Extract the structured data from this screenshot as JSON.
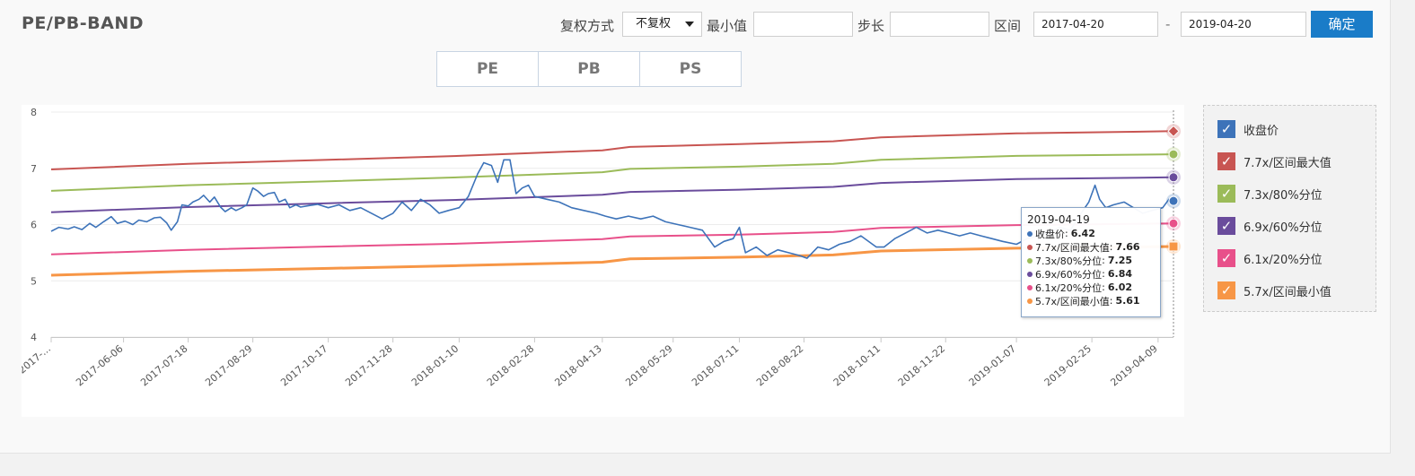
{
  "header": {
    "title": "PE/PB-BAND",
    "adjust_label": "复权方式",
    "adjust_value": "不复权",
    "min_label": "最小值",
    "min_value": "",
    "step_label": "步长",
    "step_value": "",
    "range_label": "区间",
    "start_date": "2017-04-20",
    "dash": "-",
    "end_date": "2019-04-20",
    "confirm_label": "确定"
  },
  "tabs": [
    {
      "label": "PE",
      "active": true
    },
    {
      "label": "PB",
      "active": false
    },
    {
      "label": "PS",
      "active": false
    }
  ],
  "legend": [
    {
      "label": "收盘价",
      "color": "#3d73b9",
      "checked": true
    },
    {
      "label": "7.7x/区间最大值",
      "color": "#c85552",
      "checked": true
    },
    {
      "label": "7.3x/80%分位",
      "color": "#9bbb59",
      "checked": true
    },
    {
      "label": "6.9x/60%分位",
      "color": "#6a4c9c",
      "checked": true
    },
    {
      "label": "6.1x/20%分位",
      "color": "#e8508a",
      "checked": true
    },
    {
      "label": "5.7x/区间最小值",
      "color": "#f79646",
      "checked": true
    }
  ],
  "tooltip": {
    "date": "2019-04-19",
    "rows": [
      {
        "label": "收盘价",
        "value": "6.42",
        "color": "#3d73b9"
      },
      {
        "label": "7.7x/区间最大值",
        "value": "7.66",
        "color": "#c85552"
      },
      {
        "label": "7.3x/80%分位",
        "value": "7.25",
        "color": "#9bbb59"
      },
      {
        "label": "6.9x/60%分位",
        "value": "6.84",
        "color": "#6a4c9c"
      },
      {
        "label": "6.1x/20%分位",
        "value": "6.02",
        "color": "#e8508a"
      },
      {
        "label": "5.7x/区间最小值",
        "value": "5.61",
        "color": "#f79646"
      }
    ]
  },
  "chart_data": {
    "type": "line",
    "ylim": [
      4,
      8
    ],
    "yticks": [
      "4",
      "5",
      "6",
      "7",
      "8"
    ],
    "xlim": [
      "2017-04-20",
      "2019-04-19"
    ],
    "xtick_labels": [
      {
        "date": "2017-04-20",
        "label": "2017-..."
      },
      {
        "date": "2017-06-06",
        "label": "2017-06-06"
      },
      {
        "date": "2017-07-18",
        "label": "2017-07-18"
      },
      {
        "date": "2017-08-29",
        "label": "2017-08-29"
      },
      {
        "date": "2017-10-17",
        "label": "2017-10-17"
      },
      {
        "date": "2017-11-28",
        "label": "2017-11-28"
      },
      {
        "date": "2018-01-10",
        "label": "2018-01-10"
      },
      {
        "date": "2018-02-28",
        "label": "2018-02-28"
      },
      {
        "date": "2018-04-13",
        "label": "2018-04-13"
      },
      {
        "date": "2018-05-29",
        "label": "2018-05-29"
      },
      {
        "date": "2018-07-11",
        "label": "2018-07-11"
      },
      {
        "date": "2018-08-22",
        "label": "2018-08-22"
      },
      {
        "date": "2018-10-11",
        "label": "2018-10-11"
      },
      {
        "date": "2018-11-22",
        "label": "2018-11-22"
      },
      {
        "date": "2019-01-07",
        "label": "2019-01-07"
      },
      {
        "date": "2019-02-25",
        "label": "2019-02-25"
      },
      {
        "date": "2019-04-09",
        "label": "2019-04-09"
      }
    ],
    "legend_position": "right",
    "grid": true,
    "series": [
      {
        "name": "收盘价",
        "color": "#3d73b9",
        "width": 1.6,
        "points": [
          [
            "2017-04-20",
            5.88
          ],
          [
            "2017-04-25",
            5.95
          ],
          [
            "2017-05-01",
            5.92
          ],
          [
            "2017-05-05",
            5.96
          ],
          [
            "2017-05-10",
            5.91
          ],
          [
            "2017-05-15",
            6.02
          ],
          [
            "2017-05-19",
            5.95
          ],
          [
            "2017-05-24",
            6.05
          ],
          [
            "2017-05-29",
            6.14
          ],
          [
            "2017-06-02",
            6.02
          ],
          [
            "2017-06-07",
            6.06
          ],
          [
            "2017-06-12",
            6.0
          ],
          [
            "2017-06-16",
            6.08
          ],
          [
            "2017-06-21",
            6.05
          ],
          [
            "2017-06-26",
            6.12
          ],
          [
            "2017-06-30",
            6.13
          ],
          [
            "2017-07-04",
            6.03
          ],
          [
            "2017-07-07",
            5.9
          ],
          [
            "2017-07-11",
            6.05
          ],
          [
            "2017-07-14",
            6.35
          ],
          [
            "2017-07-18",
            6.33
          ],
          [
            "2017-07-21",
            6.4
          ],
          [
            "2017-07-25",
            6.45
          ],
          [
            "2017-07-28",
            6.52
          ],
          [
            "2017-08-01",
            6.4
          ],
          [
            "2017-08-04",
            6.49
          ],
          [
            "2017-08-08",
            6.31
          ],
          [
            "2017-08-11",
            6.23
          ],
          [
            "2017-08-15",
            6.3
          ],
          [
            "2017-08-18",
            6.25
          ],
          [
            "2017-08-22",
            6.3
          ],
          [
            "2017-08-25",
            6.35
          ],
          [
            "2017-08-29",
            6.65
          ],
          [
            "2017-09-01",
            6.6
          ],
          [
            "2017-09-05",
            6.5
          ],
          [
            "2017-09-08",
            6.55
          ],
          [
            "2017-09-12",
            6.57
          ],
          [
            "2017-09-15",
            6.4
          ],
          [
            "2017-09-19",
            6.45
          ],
          [
            "2017-09-22",
            6.3
          ],
          [
            "2017-09-26",
            6.35
          ],
          [
            "2017-09-29",
            6.31
          ],
          [
            "2017-10-05",
            6.34
          ],
          [
            "2017-10-10",
            6.36
          ],
          [
            "2017-10-17",
            6.3
          ],
          [
            "2017-10-24",
            6.35
          ],
          [
            "2017-10-31",
            6.25
          ],
          [
            "2017-11-07",
            6.3
          ],
          [
            "2017-11-14",
            6.2
          ],
          [
            "2017-11-21",
            6.1
          ],
          [
            "2017-11-28",
            6.2
          ],
          [
            "2017-12-04",
            6.4
          ],
          [
            "2017-12-10",
            6.25
          ],
          [
            "2017-12-16",
            6.45
          ],
          [
            "2017-12-22",
            6.35
          ],
          [
            "2017-12-28",
            6.2
          ],
          [
            "2018-01-03",
            6.25
          ],
          [
            "2018-01-10",
            6.3
          ],
          [
            "2018-01-16",
            6.5
          ],
          [
            "2018-01-22",
            6.9
          ],
          [
            "2018-01-26",
            7.1
          ],
          [
            "2018-01-31",
            7.05
          ],
          [
            "2018-02-04",
            6.75
          ],
          [
            "2018-02-08",
            7.15
          ],
          [
            "2018-02-12",
            7.15
          ],
          [
            "2018-02-16",
            6.55
          ],
          [
            "2018-02-20",
            6.65
          ],
          [
            "2018-02-24",
            6.7
          ],
          [
            "2018-02-28",
            6.5
          ],
          [
            "2018-03-08",
            6.45
          ],
          [
            "2018-03-16",
            6.4
          ],
          [
            "2018-03-24",
            6.3
          ],
          [
            "2018-04-01",
            6.25
          ],
          [
            "2018-04-09",
            6.2
          ],
          [
            "2018-04-15",
            6.15
          ],
          [
            "2018-04-22",
            6.1
          ],
          [
            "2018-04-30",
            6.15
          ],
          [
            "2018-05-08",
            6.1
          ],
          [
            "2018-05-16",
            6.15
          ],
          [
            "2018-05-24",
            6.05
          ],
          [
            "2018-06-01",
            6.0
          ],
          [
            "2018-06-09",
            5.95
          ],
          [
            "2018-06-17",
            5.9
          ],
          [
            "2018-06-25",
            5.6
          ],
          [
            "2018-07-01",
            5.7
          ],
          [
            "2018-07-07",
            5.75
          ],
          [
            "2018-07-11",
            5.95
          ],
          [
            "2018-07-15",
            5.5
          ],
          [
            "2018-07-22",
            5.6
          ],
          [
            "2018-07-29",
            5.45
          ],
          [
            "2018-08-05",
            5.55
          ],
          [
            "2018-08-12",
            5.5
          ],
          [
            "2018-08-19",
            5.45
          ],
          [
            "2018-08-24",
            5.4
          ],
          [
            "2018-08-31",
            5.6
          ],
          [
            "2018-09-07",
            5.55
          ],
          [
            "2018-09-14",
            5.65
          ],
          [
            "2018-09-21",
            5.7
          ],
          [
            "2018-09-28",
            5.8
          ],
          [
            "2018-10-08",
            5.6
          ],
          [
            "2018-10-13",
            5.6
          ],
          [
            "2018-10-20",
            5.75
          ],
          [
            "2018-10-27",
            5.85
          ],
          [
            "2018-11-03",
            5.95
          ],
          [
            "2018-11-10",
            5.85
          ],
          [
            "2018-11-17",
            5.9
          ],
          [
            "2018-11-24",
            5.85
          ],
          [
            "2018-12-01",
            5.8
          ],
          [
            "2018-12-08",
            5.85
          ],
          [
            "2018-12-15",
            5.8
          ],
          [
            "2018-12-22",
            5.75
          ],
          [
            "2018-12-29",
            5.7
          ],
          [
            "2019-01-07",
            5.65
          ],
          [
            "2019-01-14",
            5.75
          ],
          [
            "2019-01-21",
            5.8
          ],
          [
            "2019-01-28",
            5.85
          ],
          [
            "2019-02-04",
            5.95
          ],
          [
            "2019-02-11",
            5.9
          ],
          [
            "2019-02-18",
            6.2
          ],
          [
            "2019-02-23",
            6.4
          ],
          [
            "2019-02-27",
            6.7
          ],
          [
            "2019-03-02",
            6.45
          ],
          [
            "2019-03-06",
            6.3
          ],
          [
            "2019-03-11",
            6.35
          ],
          [
            "2019-03-18",
            6.4
          ],
          [
            "2019-03-24",
            6.3
          ],
          [
            "2019-03-30",
            6.2
          ],
          [
            "2019-04-05",
            6.25
          ],
          [
            "2019-04-12",
            6.3
          ],
          [
            "2019-04-16",
            6.45
          ],
          [
            "2019-04-19",
            6.42
          ]
        ]
      },
      {
        "name": "7.7x/区间最大值",
        "color": "#c85552",
        "width": 2,
        "points": [
          [
            "2017-04-20",
            6.98
          ],
          [
            "2017-07-18",
            7.08
          ],
          [
            "2017-10-17",
            7.15
          ],
          [
            "2018-01-10",
            7.22
          ],
          [
            "2018-04-13",
            7.32
          ],
          [
            "2018-05-01",
            7.38
          ],
          [
            "2018-07-11",
            7.43
          ],
          [
            "2018-09-10",
            7.48
          ],
          [
            "2018-10-11",
            7.55
          ],
          [
            "2019-01-07",
            7.62
          ],
          [
            "2019-04-19",
            7.66
          ]
        ]
      },
      {
        "name": "7.3x/80%分位",
        "color": "#9bbb59",
        "width": 2,
        "points": [
          [
            "2017-04-20",
            6.6
          ],
          [
            "2017-07-18",
            6.7
          ],
          [
            "2017-10-17",
            6.77
          ],
          [
            "2018-01-10",
            6.84
          ],
          [
            "2018-04-13",
            6.93
          ],
          [
            "2018-05-01",
            6.99
          ],
          [
            "2018-07-11",
            7.03
          ],
          [
            "2018-09-10",
            7.08
          ],
          [
            "2018-10-11",
            7.15
          ],
          [
            "2019-01-07",
            7.22
          ],
          [
            "2019-04-19",
            7.25
          ]
        ]
      },
      {
        "name": "6.9x/60%分位",
        "color": "#6a4c9c",
        "width": 2,
        "points": [
          [
            "2017-04-20",
            6.22
          ],
          [
            "2017-07-18",
            6.31
          ],
          [
            "2017-10-17",
            6.38
          ],
          [
            "2018-01-10",
            6.44
          ],
          [
            "2018-04-13",
            6.53
          ],
          [
            "2018-05-01",
            6.58
          ],
          [
            "2018-07-11",
            6.62
          ],
          [
            "2018-09-10",
            6.67
          ],
          [
            "2018-10-11",
            6.74
          ],
          [
            "2019-01-07",
            6.81
          ],
          [
            "2019-04-19",
            6.84
          ]
        ]
      },
      {
        "name": "6.1x/20%分位",
        "color": "#e8508a",
        "width": 2,
        "points": [
          [
            "2017-04-20",
            5.47
          ],
          [
            "2017-07-18",
            5.55
          ],
          [
            "2017-10-17",
            5.61
          ],
          [
            "2018-01-10",
            5.66
          ],
          [
            "2018-04-13",
            5.74
          ],
          [
            "2018-05-01",
            5.79
          ],
          [
            "2018-07-11",
            5.82
          ],
          [
            "2018-09-10",
            5.87
          ],
          [
            "2018-10-11",
            5.94
          ],
          [
            "2019-01-07",
            5.99
          ],
          [
            "2019-04-19",
            6.02
          ]
        ]
      },
      {
        "name": "5.7x/区间最小值",
        "color": "#f79646",
        "width": 3,
        "points": [
          [
            "2017-04-20",
            5.1
          ],
          [
            "2017-07-18",
            5.17
          ],
          [
            "2017-10-17",
            5.22
          ],
          [
            "2018-01-10",
            5.27
          ],
          [
            "2018-04-13",
            5.33
          ],
          [
            "2018-05-01",
            5.39
          ],
          [
            "2018-07-11",
            5.42
          ],
          [
            "2018-09-10",
            5.46
          ],
          [
            "2018-10-11",
            5.53
          ],
          [
            "2019-01-07",
            5.58
          ],
          [
            "2019-04-19",
            5.61
          ]
        ]
      }
    ]
  }
}
